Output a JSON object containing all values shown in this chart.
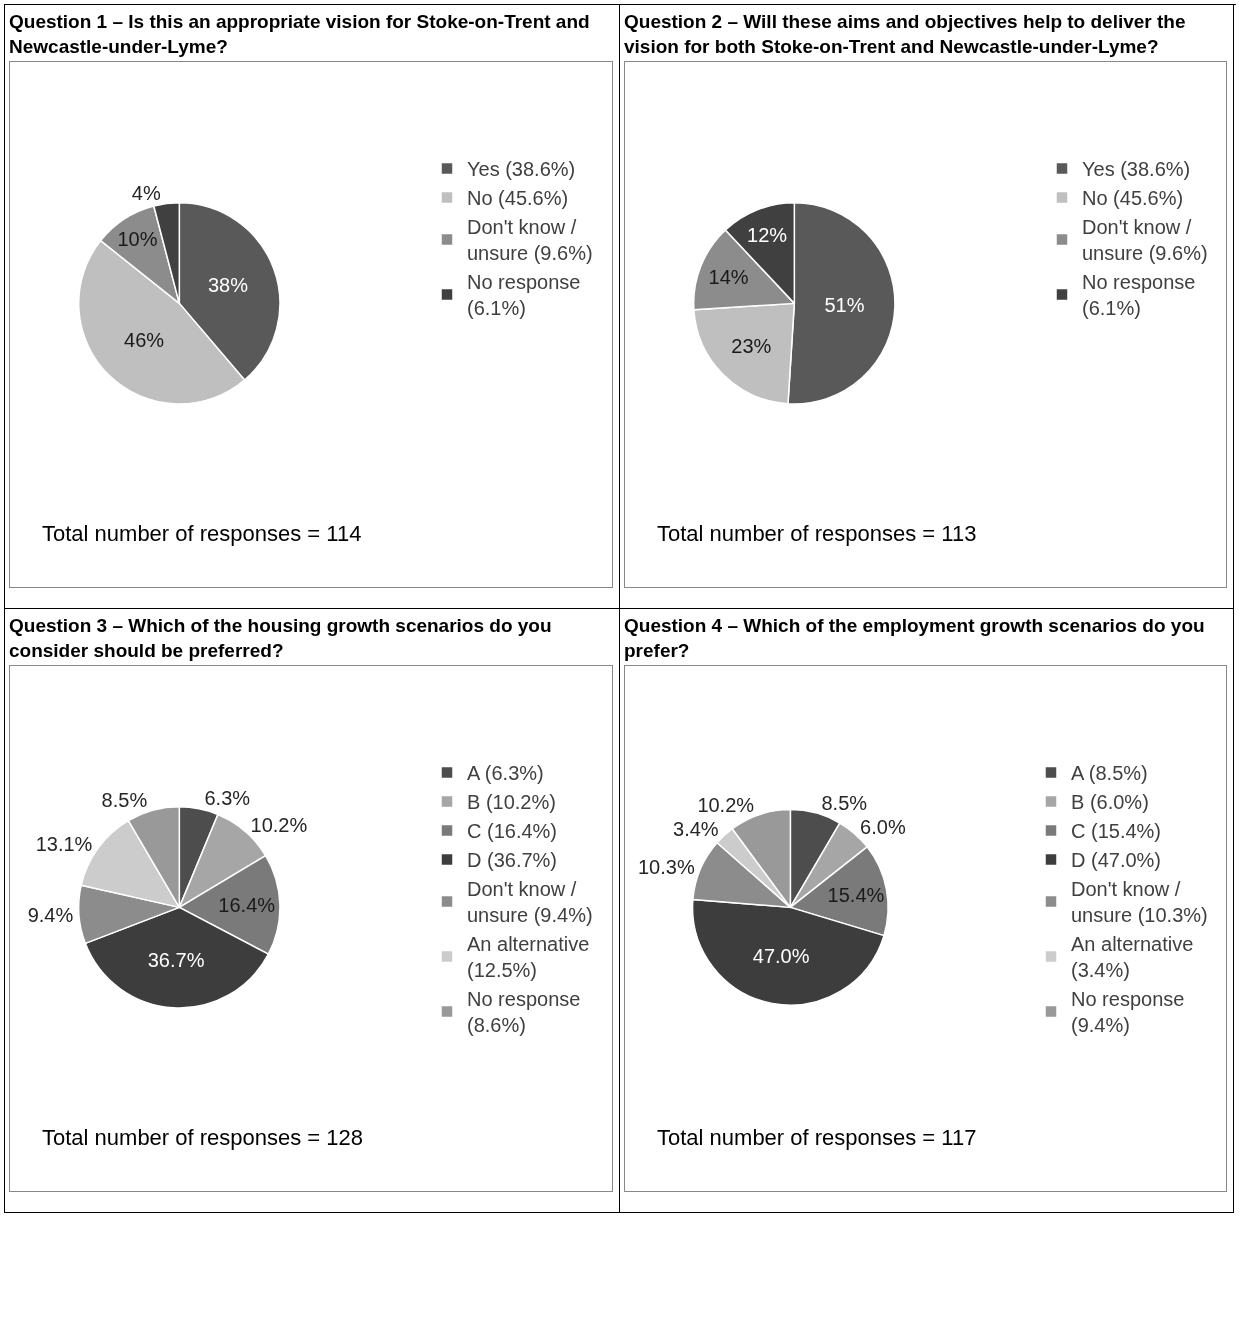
{
  "chart_data": [
    {
      "type": "pie",
      "title": "Question 1 – Is this an appropriate vision for Stoke-on-Trent and Newcastle-under-Lyme?",
      "categories": [
        "Yes (38.6%)",
        "No (45.6%)",
        "Don't know / unsure (9.6%)",
        "No response (6.1%)"
      ],
      "values": [
        38,
        46,
        10,
        4
      ],
      "value_labels": [
        "38%",
        "46%",
        "10%",
        "4%"
      ],
      "colors": [
        "#595959",
        "#bfbfbf",
        "#8c8c8c",
        "#404040"
      ],
      "legend": "right",
      "annotations": [
        "Total number of responses = 114"
      ]
    },
    {
      "type": "pie",
      "title": "Question 2 – Will these aims and objectives help to deliver the vision for both Stoke-on-Trent and Newcastle-under-Lyme?",
      "categories": [
        "Yes (38.6%)",
        "No (45.6%)",
        "Don't know / unsure (9.6%)",
        "No response (6.1%)"
      ],
      "values": [
        51,
        23,
        14,
        12
      ],
      "value_labels": [
        "51%",
        "23%",
        "14%",
        "12%"
      ],
      "colors": [
        "#595959",
        "#bfbfbf",
        "#8c8c8c",
        "#404040"
      ],
      "legend": "right",
      "annotations": [
        "Total number of responses = 113"
      ]
    },
    {
      "type": "pie",
      "title": "Question 3 – Which of the housing growth scenarios do you consider should be preferred?",
      "categories": [
        "A (6.3%)",
        "B (10.2%)",
        "C (16.4%)",
        "D (36.7%)",
        "Don't know / unsure (9.4%)",
        "An alternative (12.5%)",
        "No response (8.6%)"
      ],
      "values": [
        6.3,
        10.2,
        16.4,
        36.7,
        9.4,
        13.1,
        8.5
      ],
      "value_labels": [
        "6.3%",
        "10.2%",
        "16.4%",
        "36.7%",
        "9.4%",
        "13.1%",
        "8.5%"
      ],
      "colors": [
        "#4d4d4d",
        "#a6a6a6",
        "#7a7a7a",
        "#3d3d3d",
        "#8c8c8c",
        "#cccccc",
        "#999999"
      ],
      "legend": "right",
      "annotations": [
        "Total number of responses = 128"
      ]
    },
    {
      "type": "pie",
      "title": "Question 4 – Which of the employment growth scenarios do you prefer?",
      "categories": [
        "A (8.5%)",
        "B (6.0%)",
        "C (15.4%)",
        "D (47.0%)",
        "Don't know / unsure (10.3%)",
        "An alternative (3.4%)",
        "No response (9.4%)"
      ],
      "values": [
        8.5,
        6.0,
        15.4,
        47.0,
        10.3,
        3.4,
        10.2
      ],
      "value_labels": [
        "8.5%",
        "6.0%",
        "15.4%",
        "47.0%",
        "10.3%",
        "3.4%",
        "10.2%"
      ],
      "colors": [
        "#4d4d4d",
        "#a6a6a6",
        "#7a7a7a",
        "#3d3d3d",
        "#8c8c8c",
        "#cccccc",
        "#999999"
      ],
      "legend": "right",
      "annotations": [
        "Total number of responses = 117"
      ]
    }
  ]
}
